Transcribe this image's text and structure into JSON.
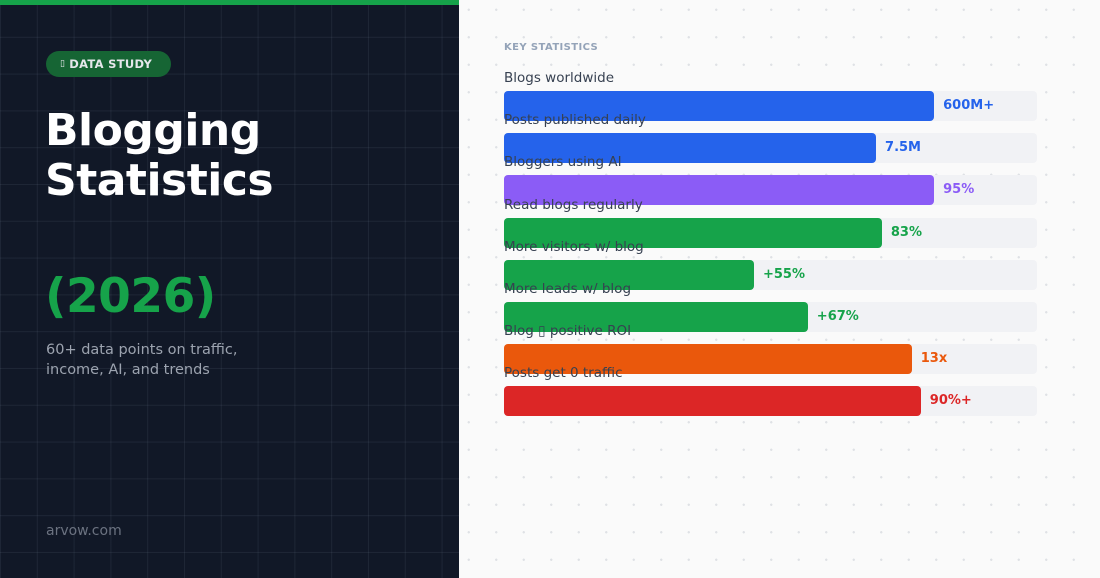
{
  "left_panel": {
    "badge": {
      "icon": "chart-icon",
      "icon_glyph": "▯",
      "label": "DATA STUDY"
    },
    "title_line1": "Blogging",
    "title_line2": "Statistics",
    "year": "(2026)",
    "subtitle": "60+ data points on traffic, income, AI, and trends",
    "site": "arvow.com",
    "accent_color": "#16a34a",
    "background_color": "#111827"
  },
  "right_panel": {
    "section_label": "KEY STATISTICS"
  },
  "chart_data": {
    "type": "bar",
    "orientation": "horizontal",
    "title": "KEY STATISTICS",
    "xlabel": "",
    "ylabel": "",
    "grid": false,
    "legend": null,
    "categories": [
      "Blogs worldwide",
      "Posts published daily",
      "Bloggers using AI",
      "Read blogs regularly",
      "More visitors w/ blog",
      "More leads w/ blog",
      "Blog ▯ positive ROI",
      "Posts get 0 traffic"
    ],
    "value_labels": [
      "600M+",
      "7.5M",
      "95%",
      "83%",
      "+55%",
      "+67%",
      "13x",
      "90%+"
    ],
    "bar_fill_percent": [
      80.7,
      69.8,
      80.7,
      70.9,
      46.9,
      57.0,
      76.5,
      78.2
    ],
    "colors": [
      "#2563eb",
      "#2563eb",
      "#8b5cf6",
      "#16a34a",
      "#16a34a",
      "#16a34a",
      "#ea580c",
      "#dc2626"
    ],
    "rows": [
      {
        "label": "Blogs worldwide",
        "value": "600M+",
        "fill": 80.7,
        "color": "#2563eb"
      },
      {
        "label": "Posts published daily",
        "value": "7.5M",
        "fill": 69.8,
        "color": "#2563eb"
      },
      {
        "label": "Bloggers using AI",
        "value": "95%",
        "fill": 80.7,
        "color": "#8b5cf6"
      },
      {
        "label": "Read blogs regularly",
        "value": "83%",
        "fill": 70.9,
        "color": "#16a34a"
      },
      {
        "label": "More visitors w/ blog",
        "value": "+55%",
        "fill": 46.9,
        "color": "#16a34a"
      },
      {
        "label": "More leads w/ blog",
        "value": "+67%",
        "fill": 57.0,
        "color": "#16a34a"
      },
      {
        "label": "Blog ▯ positive ROI",
        "value": "13x",
        "fill": 76.5,
        "color": "#ea580c"
      },
      {
        "label": "Posts get 0 traffic",
        "value": "90%+",
        "fill": 78.2,
        "color": "#dc2626"
      }
    ]
  }
}
